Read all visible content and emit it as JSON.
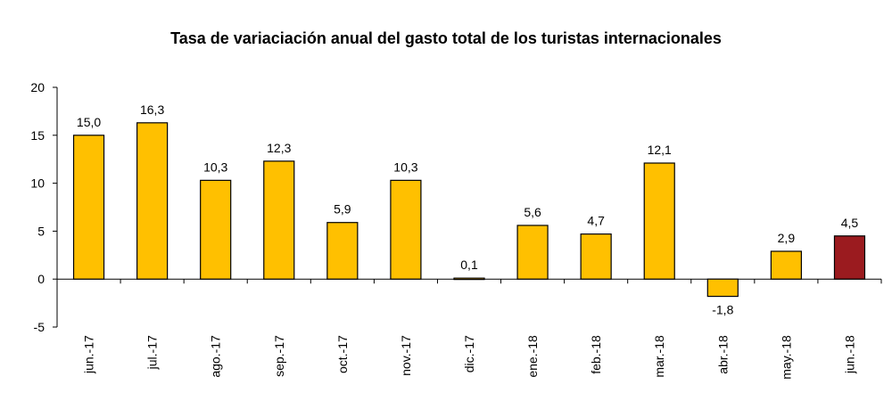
{
  "chart_data": {
    "type": "bar",
    "title": "Tasa de variaciación anual del gasto total de los turistas internacionales",
    "xlabel": "",
    "ylabel": "",
    "categories": [
      "jun.-17",
      "jul.-17",
      "ago.-17",
      "sep.-17",
      "oct.-17",
      "nov.-17",
      "dic.-17",
      "ene.-18",
      "feb.-18",
      "mar.-18",
      "abr.-18",
      "may.-18",
      "jun.-18"
    ],
    "values": [
      15.0,
      16.3,
      10.3,
      12.3,
      5.9,
      10.3,
      0.1,
      5.6,
      4.7,
      12.1,
      -1.8,
      2.9,
      4.5
    ],
    "data_labels": [
      "15,0",
      "16,3",
      "10,3",
      "12,3",
      "5,9",
      "10,3",
      "0,1",
      "5,6",
      "4,7",
      "12,1",
      "-1,8",
      "2,9",
      "4,5"
    ],
    "ylim": [
      -5,
      20
    ],
    "yticks": [
      -5,
      0,
      5,
      10,
      15,
      20
    ],
    "ytick_labels": [
      "-5",
      "0",
      "5",
      "10",
      "15",
      "20"
    ],
    "grid": false,
    "legend": "none",
    "colors": {
      "bar": "#FFC000",
      "highlight": "#9B1B1F",
      "edge": "#000000"
    },
    "highlight_index": 12
  }
}
